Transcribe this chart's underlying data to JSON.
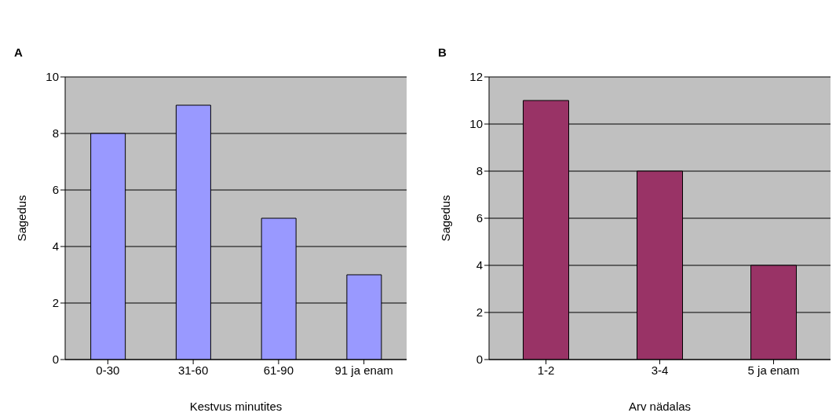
{
  "chart_data": [
    {
      "type": "bar",
      "title": "A",
      "xlabel": "Kestvus minutites",
      "ylabel": "Sagedus",
      "categories": [
        "0-30",
        "31-60",
        "61-90",
        "91 ja enam"
      ],
      "values": [
        8,
        9,
        5,
        3
      ],
      "color": "#9999ff",
      "ylim": [
        0,
        10
      ],
      "yticks": [
        0,
        2,
        4,
        6,
        8,
        10
      ],
      "grid": "y"
    },
    {
      "type": "bar",
      "title": "B",
      "xlabel": "Arv nädalas",
      "ylabel": "Sagedus",
      "categories": [
        "1-2",
        "3-4",
        "5 ja enam"
      ],
      "values": [
        11,
        8,
        4
      ],
      "color": "#993366",
      "ylim": [
        0,
        12
      ],
      "yticks": [
        0,
        2,
        4,
        6,
        8,
        10,
        12
      ],
      "grid": "y"
    }
  ]
}
